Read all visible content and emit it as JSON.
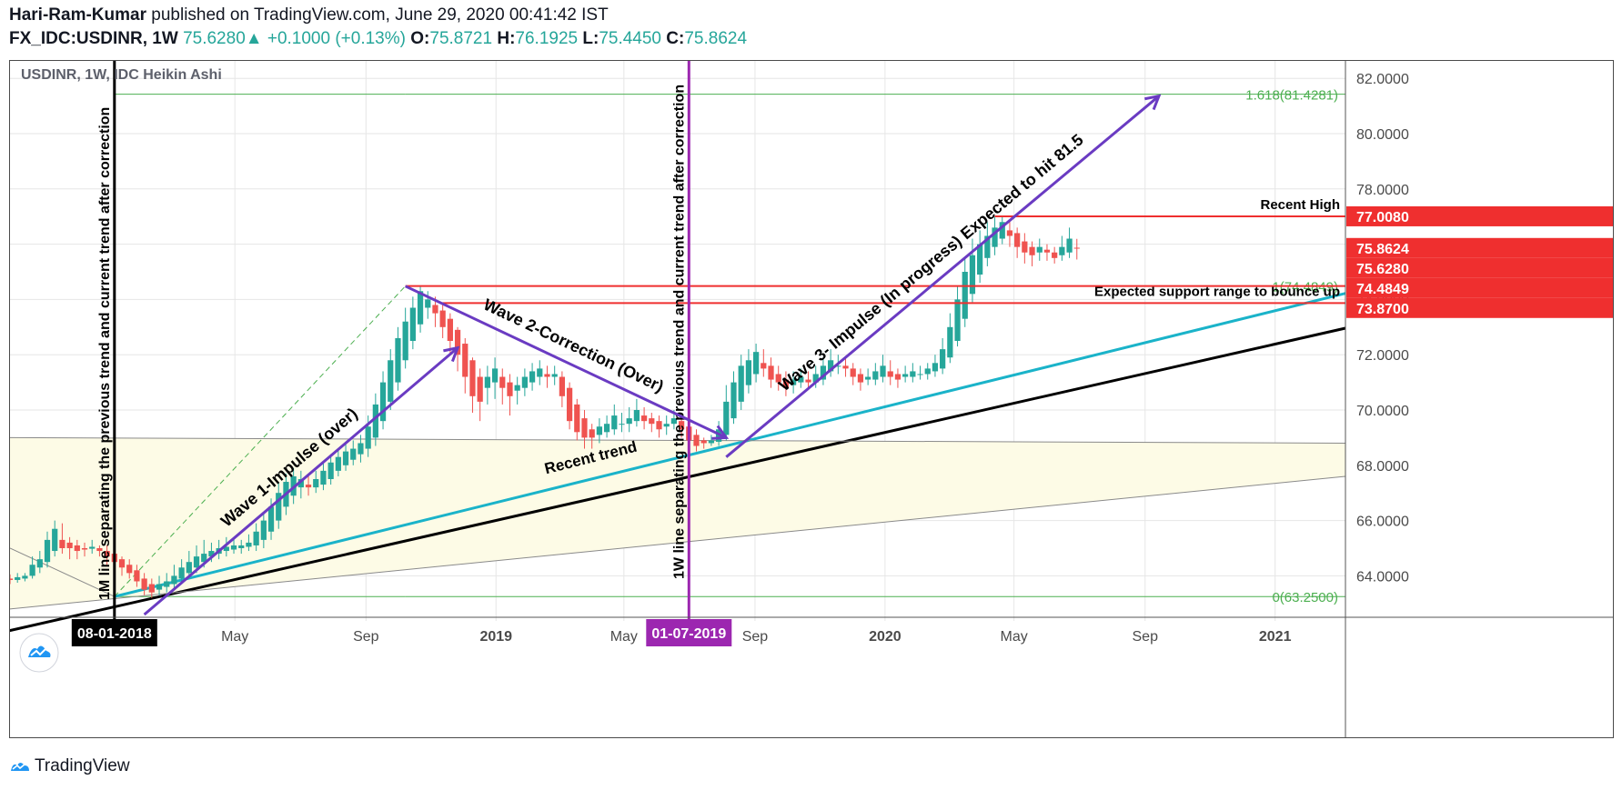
{
  "header": {
    "author": "Hari-Ram-Kumar",
    "published": "published on TradingView.com, June 29, 2020 00:41:42 IST",
    "symbol": "FX_IDC:USDINR, 1W",
    "last": "75.6280",
    "change_arrow": "▲",
    "change": "+0.1000 (+0.13%)",
    "o_label": "O:",
    "o": "75.8721",
    "h_label": "H:",
    "h": "76.1925",
    "l_label": "L:",
    "l": "75.4450",
    "c_label": "C:",
    "c": "75.8624"
  },
  "legend": "USDINR, 1W, IDC Heikin Ashi",
  "footer": {
    "brand": "TradingView",
    "logo_icon": "tradingview-logo-icon"
  },
  "colors": {
    "up": "#26a69a",
    "down": "#ef5350",
    "grid": "#e6e6e6",
    "purple": "#6a3bc2",
    "black": "#000000",
    "cyan": "#1ab3c9",
    "fib": "#4caf50",
    "red_level": "#ef2f2f",
    "zone": "#fdfbe6"
  },
  "chart_data": {
    "type": "candlestick",
    "style": "Heikin Ashi",
    "symbol": "USDINR",
    "interval": "1W",
    "ylim": [
      62.5,
      82.5
    ],
    "y_ticks": [
      "64.0000",
      "66.0000",
      "68.0000",
      "70.0000",
      "72.0000",
      "74.0000",
      "76.0000",
      "78.0000",
      "80.0000",
      "82.0000"
    ],
    "x_ticks": [
      "May",
      "Sep",
      "2019",
      "May",
      "Sep",
      "2020",
      "May",
      "Sep",
      "2021"
    ],
    "x_tick_dates": [
      "2018-05-01",
      "2018-09-01",
      "2019-01-01",
      "2019-05-01",
      "2019-09-01",
      "2020-01-01",
      "2020-05-01",
      "2020-09-01",
      "2021-01-01"
    ],
    "xlim": [
      "2017-10-02",
      "2021-03-08"
    ],
    "last_candle_date": "2020-06-29",
    "price_labels": [
      {
        "text": "77.0080",
        "value": 77.008,
        "color": "#ef2f2f"
      },
      {
        "text": "75.8624",
        "value": 75.8624,
        "color": "#ef2f2f"
      },
      {
        "text": "75.6280",
        "value": 75.628,
        "color": "#ef2f2f"
      },
      {
        "text": "74.4849",
        "value": 74.4849,
        "color": "#ef2f2f"
      },
      {
        "text": "73.8700",
        "value": 73.87,
        "color": "#ef2f2f"
      }
    ],
    "date_labels": [
      {
        "text": "08-01-2018",
        "date": "2018-01-08",
        "bg": "#000000"
      },
      {
        "text": "01-07-2019",
        "date": "2019-07-01",
        "bg": "#9c27b0"
      }
    ],
    "fib_levels": [
      {
        "label": "1.618(81.4281)",
        "value": 81.4281
      },
      {
        "label": "1(74.4849)",
        "value": 74.4849
      },
      {
        "label": "0(63.2500)",
        "value": 63.25
      }
    ],
    "horizontal_lines": [
      {
        "label": "Recent High",
        "value": 77.008,
        "from": "2020-04-13"
      },
      {
        "label": "Expected support range to bounce up",
        "value": 73.87,
        "from": "2018-11-12"
      },
      {
        "label": "",
        "value": 74.4849,
        "from": "2018-10-08"
      }
    ],
    "vertical_lines": [
      {
        "date": "2018-01-08",
        "color": "#000000",
        "label": "1M line separating the previous trend and current trend after correction"
      },
      {
        "date": "2019-07-01",
        "color": "#9c27b0",
        "label": "1W line separating the previous trend and current trend after correction"
      }
    ],
    "trend_lines": [
      {
        "name": "black",
        "from": [
          "2017-09-18",
          61.9
        ],
        "to": [
          "2021-03-08",
          72.96
        ]
      },
      {
        "name": "cyan",
        "from": [
          "2018-01-08",
          63.25
        ],
        "to": [
          "2021-03-08",
          74.22
        ]
      },
      {
        "name": "zone-top",
        "from": [
          "2017-10-02",
          69.0
        ],
        "to": [
          "2021-03-08",
          68.8
        ]
      },
      {
        "name": "zone-bottom",
        "from": [
          "2017-10-02",
          62.8
        ],
        "to": [
          "2021-03-08",
          67.6
        ]
      },
      {
        "name": "fib-diag",
        "from": [
          "2018-01-08",
          63.25
        ],
        "to": [
          "2018-10-08",
          74.4849
        ]
      }
    ],
    "arrows": [
      {
        "label": "Wave 1-Impulse (over)",
        "from": [
          "2018-02-05",
          62.6
        ],
        "to": [
          "2018-11-26",
          72.25
        ]
      },
      {
        "label": "Wave 2-Correction (Over)",
        "from": [
          "2018-10-08",
          74.48
        ],
        "to": [
          "2019-08-05",
          69.0
        ]
      },
      {
        "label": "Wave 3- Impulse (In progress) Expected to hit 81.5",
        "from": [
          "2019-08-05",
          68.3
        ],
        "to": [
          "2020-09-14",
          81.36
        ]
      }
    ],
    "annotations": [
      {
        "text": "Recent trend",
        "date": "2019-04-01",
        "value": 68.1
      }
    ],
    "candles": [
      [
        "2017-10-02",
        63.9,
        63.85,
        64.05,
        63.7
      ],
      [
        "2017-10-09",
        63.85,
        63.95,
        64.1,
        63.75
      ],
      [
        "2017-10-16",
        63.9,
        64.0,
        64.1,
        63.8
      ],
      [
        "2017-10-23",
        64.0,
        64.4,
        64.7,
        63.9
      ],
      [
        "2017-10-30",
        64.3,
        64.6,
        64.9,
        64.1
      ],
      [
        "2017-11-06",
        64.5,
        65.3,
        65.6,
        64.3
      ],
      [
        "2017-11-13",
        64.9,
        65.7,
        66.0,
        64.7
      ],
      [
        "2017-11-20",
        65.3,
        65.0,
        65.9,
        64.8
      ],
      [
        "2017-11-27",
        65.2,
        65.0,
        65.4,
        64.6
      ],
      [
        "2017-12-04",
        65.1,
        64.9,
        65.3,
        64.6
      ],
      [
        "2017-12-11",
        65.0,
        64.95,
        65.2,
        64.7
      ],
      [
        "2017-12-18",
        64.98,
        65.05,
        65.3,
        64.8
      ],
      [
        "2017-12-25",
        65.0,
        64.9,
        65.1,
        64.7
      ],
      [
        "2018-01-01",
        64.9,
        64.7,
        65.1,
        64.4
      ],
      [
        "2018-01-08",
        64.8,
        64.5,
        64.9,
        64.2
      ],
      [
        "2018-01-15",
        64.6,
        64.3,
        64.7,
        64.0
      ],
      [
        "2018-01-22",
        64.4,
        64.1,
        64.6,
        63.9
      ],
      [
        "2018-01-29",
        64.2,
        63.8,
        64.4,
        63.6
      ],
      [
        "2018-02-05",
        63.9,
        63.5,
        64.1,
        63.3
      ],
      [
        "2018-02-12",
        63.7,
        63.4,
        63.9,
        63.2
      ],
      [
        "2018-02-19",
        63.5,
        63.7,
        64.0,
        63.3
      ],
      [
        "2018-02-26",
        63.6,
        63.8,
        64.1,
        63.4
      ],
      [
        "2018-03-05",
        63.7,
        64.0,
        64.4,
        63.5
      ],
      [
        "2018-03-12",
        63.9,
        64.3,
        64.6,
        63.7
      ],
      [
        "2018-03-19",
        64.1,
        64.5,
        64.9,
        63.9
      ],
      [
        "2018-03-26",
        64.3,
        64.7,
        65.1,
        64.1
      ],
      [
        "2018-04-02",
        64.5,
        64.8,
        65.3,
        64.3
      ],
      [
        "2018-04-09",
        64.7,
        64.9,
        65.2,
        64.5
      ],
      [
        "2018-04-16",
        64.8,
        65.0,
        65.3,
        64.6
      ],
      [
        "2018-04-23",
        64.9,
        65.05,
        65.4,
        64.7
      ],
      [
        "2018-04-30",
        64.95,
        65.1,
        65.4,
        64.8
      ],
      [
        "2018-05-07",
        65.0,
        65.1,
        65.3,
        64.8
      ],
      [
        "2018-05-14",
        65.05,
        65.2,
        65.5,
        64.9
      ],
      [
        "2018-05-21",
        65.1,
        65.6,
        65.9,
        64.9
      ],
      [
        "2018-05-28",
        65.3,
        66.0,
        66.3,
        65.0
      ],
      [
        "2018-06-04",
        65.6,
        66.5,
        66.8,
        65.3
      ],
      [
        "2018-06-11",
        66.0,
        67.0,
        67.4,
        65.7
      ],
      [
        "2018-06-18",
        66.5,
        67.4,
        67.7,
        66.2
      ],
      [
        "2018-06-25",
        66.9,
        67.6,
        67.9,
        66.6
      ],
      [
        "2018-07-02",
        67.2,
        67.5,
        67.8,
        66.8
      ],
      [
        "2018-07-09",
        67.3,
        67.2,
        67.6,
        66.9
      ],
      [
        "2018-07-16",
        67.2,
        67.5,
        67.8,
        67.0
      ],
      [
        "2018-07-23",
        67.3,
        67.8,
        68.1,
        67.1
      ],
      [
        "2018-07-30",
        67.5,
        68.1,
        68.4,
        67.3
      ],
      [
        "2018-08-06",
        67.8,
        68.3,
        68.6,
        67.6
      ],
      [
        "2018-08-13",
        68.0,
        68.5,
        68.8,
        67.8
      ],
      [
        "2018-08-20",
        68.2,
        68.6,
        68.9,
        68.0
      ],
      [
        "2018-08-27",
        68.4,
        68.8,
        69.1,
        68.1
      ],
      [
        "2018-09-03",
        68.6,
        69.4,
        69.8,
        68.3
      ],
      [
        "2018-09-10",
        69.0,
        70.2,
        70.6,
        68.7
      ],
      [
        "2018-09-17",
        69.6,
        71.0,
        71.4,
        69.3
      ],
      [
        "2018-09-24",
        70.3,
        71.8,
        72.2,
        70.0
      ],
      [
        "2018-10-01",
        71.0,
        72.6,
        73.0,
        70.7
      ],
      [
        "2018-10-08",
        71.8,
        73.2,
        73.7,
        71.5
      ],
      [
        "2018-10-15",
        72.5,
        73.7,
        74.1,
        72.2
      ],
      [
        "2018-10-22",
        73.1,
        74.3,
        74.48,
        72.8
      ],
      [
        "2018-10-29",
        73.7,
        74.0,
        74.3,
        73.3
      ],
      [
        "2018-11-05",
        73.8,
        73.5,
        74.1,
        73.0
      ],
      [
        "2018-11-12",
        73.6,
        73.0,
        73.9,
        72.6
      ],
      [
        "2018-11-19",
        73.3,
        72.5,
        73.5,
        72.0
      ],
      [
        "2018-11-26",
        72.9,
        72.0,
        73.0,
        71.4
      ],
      [
        "2018-12-03",
        72.4,
        71.2,
        72.6,
        70.6
      ],
      [
        "2018-12-10",
        71.8,
        70.5,
        71.9,
        69.9
      ],
      [
        "2018-12-17",
        71.2,
        70.3,
        71.5,
        69.6
      ],
      [
        "2018-12-24",
        70.8,
        71.2,
        71.6,
        70.2
      ],
      [
        "2018-12-31",
        71.0,
        71.5,
        71.9,
        70.4
      ],
      [
        "2019-01-07",
        71.2,
        70.8,
        71.5,
        70.2
      ],
      [
        "2019-01-14",
        71.0,
        70.5,
        71.3,
        69.8
      ],
      [
        "2019-01-21",
        70.7,
        70.9,
        71.2,
        70.2
      ],
      [
        "2019-01-28",
        70.8,
        71.2,
        71.5,
        70.5
      ],
      [
        "2019-02-04",
        71.0,
        71.4,
        71.7,
        70.7
      ],
      [
        "2019-02-11",
        71.2,
        71.5,
        71.8,
        70.9
      ],
      [
        "2019-02-18",
        71.3,
        71.2,
        71.6,
        70.8
      ],
      [
        "2019-02-25",
        71.2,
        71.3,
        71.6,
        70.9
      ],
      [
        "2019-03-04",
        71.2,
        70.5,
        71.4,
        70.1
      ],
      [
        "2019-03-11",
        70.8,
        69.6,
        71.0,
        69.3
      ],
      [
        "2019-03-18",
        70.2,
        69.2,
        70.4,
        68.9
      ],
      [
        "2019-03-25",
        69.7,
        69.0,
        70.0,
        68.6
      ],
      [
        "2019-04-01",
        69.3,
        69.0,
        69.5,
        68.6
      ],
      [
        "2019-04-08",
        69.1,
        69.4,
        69.7,
        68.8
      ],
      [
        "2019-04-15",
        69.2,
        69.5,
        69.8,
        69.0
      ],
      [
        "2019-04-22",
        69.3,
        69.8,
        70.2,
        69.1
      ],
      [
        "2019-04-29",
        69.5,
        69.5,
        69.9,
        69.2
      ],
      [
        "2019-05-06",
        69.5,
        69.7,
        70.1,
        69.2
      ],
      [
        "2019-05-13",
        69.6,
        70.0,
        70.4,
        69.4
      ],
      [
        "2019-05-20",
        69.8,
        69.6,
        70.1,
        69.3
      ],
      [
        "2019-05-27",
        69.7,
        69.5,
        69.9,
        69.2
      ],
      [
        "2019-06-03",
        69.6,
        69.3,
        69.8,
        69.0
      ],
      [
        "2019-06-10",
        69.4,
        69.5,
        69.8,
        69.1
      ],
      [
        "2019-06-17",
        69.5,
        69.7,
        70.0,
        69.3
      ],
      [
        "2019-06-24",
        69.6,
        69.3,
        69.8,
        69.0
      ],
      [
        "2019-07-01",
        69.4,
        68.9,
        69.6,
        68.6
      ],
      [
        "2019-07-08",
        69.1,
        68.7,
        69.3,
        68.5
      ],
      [
        "2019-07-15",
        68.9,
        68.8,
        69.0,
        68.6
      ],
      [
        "2019-07-22",
        68.8,
        68.9,
        69.1,
        68.7
      ],
      [
        "2019-07-29",
        68.85,
        69.3,
        69.6,
        68.7
      ],
      [
        "2019-08-05",
        69.1,
        70.3,
        70.9,
        68.9
      ],
      [
        "2019-08-12",
        69.7,
        71.0,
        71.4,
        69.5
      ],
      [
        "2019-08-19",
        70.3,
        71.6,
        72.0,
        70.0
      ],
      [
        "2019-08-26",
        70.9,
        71.8,
        72.2,
        70.6
      ],
      [
        "2019-09-02",
        71.3,
        72.1,
        72.4,
        71.0
      ],
      [
        "2019-09-09",
        71.7,
        71.5,
        72.2,
        71.2
      ],
      [
        "2019-09-16",
        71.6,
        71.1,
        71.9,
        70.8
      ],
      [
        "2019-09-23",
        71.3,
        71.0,
        71.6,
        70.7
      ],
      [
        "2019-09-30",
        71.1,
        70.8,
        71.4,
        70.5
      ],
      [
        "2019-10-07",
        70.9,
        71.1,
        71.4,
        70.6
      ],
      [
        "2019-10-14",
        71.0,
        71.2,
        71.5,
        70.8
      ],
      [
        "2019-10-21",
        71.1,
        71.0,
        71.4,
        70.8
      ],
      [
        "2019-10-28",
        71.0,
        71.3,
        71.6,
        70.8
      ],
      [
        "2019-11-04",
        71.1,
        71.6,
        71.9,
        70.9
      ],
      [
        "2019-11-11",
        71.4,
        71.8,
        72.2,
        71.2
      ],
      [
        "2019-11-18",
        71.6,
        71.6,
        72.0,
        71.3
      ],
      [
        "2019-11-25",
        71.6,
        71.5,
        71.9,
        71.2
      ],
      [
        "2019-12-02",
        71.5,
        71.2,
        71.7,
        70.9
      ],
      [
        "2019-12-09",
        71.3,
        71.0,
        71.5,
        70.7
      ],
      [
        "2019-12-16",
        71.1,
        71.2,
        71.5,
        70.9
      ],
      [
        "2019-12-23",
        71.1,
        71.4,
        71.7,
        70.9
      ],
      [
        "2019-12-30",
        71.2,
        71.6,
        72.0,
        71.0
      ],
      [
        "2020-01-06",
        71.4,
        71.2,
        71.8,
        70.9
      ],
      [
        "2020-01-13",
        71.3,
        71.1,
        71.5,
        70.8
      ],
      [
        "2020-01-20",
        71.2,
        71.3,
        71.6,
        71.0
      ],
      [
        "2020-01-27",
        71.2,
        71.4,
        71.7,
        71.0
      ],
      [
        "2020-02-03",
        71.3,
        71.3,
        71.6,
        71.1
      ],
      [
        "2020-02-10",
        71.3,
        71.5,
        71.7,
        71.1
      ],
      [
        "2020-02-17",
        71.4,
        71.7,
        72.0,
        71.2
      ],
      [
        "2020-02-24",
        71.5,
        72.2,
        72.6,
        71.3
      ],
      [
        "2020-03-02",
        71.9,
        73.0,
        73.5,
        71.7
      ],
      [
        "2020-03-09",
        72.5,
        74.0,
        74.5,
        72.3
      ],
      [
        "2020-03-16",
        73.3,
        75.0,
        75.5,
        73.0
      ],
      [
        "2020-03-23",
        74.2,
        75.6,
        76.2,
        73.9
      ],
      [
        "2020-03-30",
        74.9,
        76.0,
        76.5,
        74.6
      ],
      [
        "2020-04-06",
        75.5,
        76.3,
        76.8,
        75.2
      ],
      [
        "2020-04-13",
        75.9,
        76.6,
        77.0,
        75.6
      ],
      [
        "2020-04-20",
        76.2,
        76.8,
        77.0,
        76.0
      ],
      [
        "2020-04-27",
        76.5,
        76.3,
        76.9,
        75.9
      ],
      [
        "2020-05-04",
        76.4,
        75.9,
        76.6,
        75.5
      ],
      [
        "2020-05-11",
        76.1,
        75.7,
        76.4,
        75.3
      ],
      [
        "2020-05-18",
        75.9,
        75.6,
        76.1,
        75.2
      ],
      [
        "2020-05-25",
        75.7,
        75.9,
        76.2,
        75.4
      ],
      [
        "2020-06-01",
        75.8,
        75.7,
        76.0,
        75.4
      ],
      [
        "2020-06-08",
        75.7,
        75.5,
        75.9,
        75.3
      ],
      [
        "2020-06-15",
        75.6,
        75.9,
        76.3,
        75.4
      ],
      [
        "2020-06-22",
        75.7,
        76.2,
        76.6,
        75.5
      ],
      [
        "2020-06-29",
        75.8721,
        75.8624,
        76.1925,
        75.445
      ]
    ]
  }
}
